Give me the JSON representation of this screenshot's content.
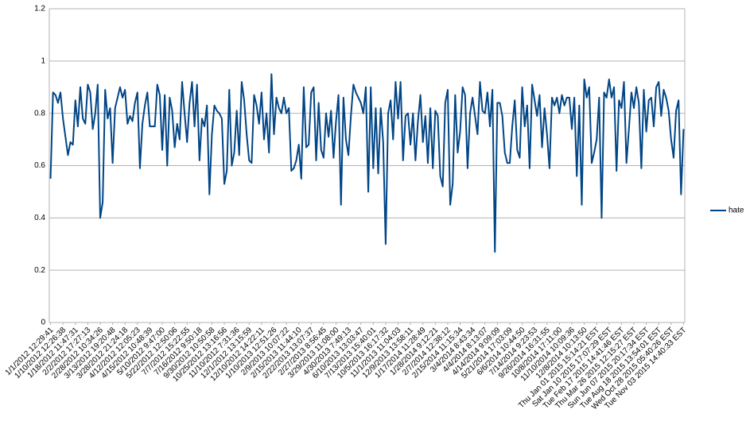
{
  "chart_data": {
    "type": "line",
    "categories": [
      "1/1/2012 12:29:41",
      null,
      null,
      null,
      null,
      "1/10/2012 12:26:38",
      null,
      null,
      null,
      null,
      "1/18/2012 11:47:31",
      null,
      null,
      null,
      null,
      "2/2/2012 17:27:13",
      null,
      null,
      null,
      null,
      "2/28/2012 10:34:26",
      null,
      null,
      null,
      null,
      "3/13/2012 19:20:48",
      null,
      null,
      null,
      null,
      "3/28/2012 21:24:18",
      null,
      null,
      null,
      null,
      "4/12/2012 12:05:23",
      null,
      null,
      null,
      null,
      "4/15/2012 10:48:39",
      null,
      null,
      null,
      null,
      "5/10/2012 9:47:00",
      null,
      null,
      null,
      null,
      "5/22/2012 12:50:06",
      null,
      null,
      null,
      null,
      "7/7/2012 15:22:55",
      null,
      null,
      null,
      null,
      "7/16/2012 9:50:18",
      null,
      null,
      null,
      null,
      "9/30/2012 10:50:58",
      null,
      null,
      null,
      null,
      "10/25/2012 13:16:56",
      null,
      null,
      null,
      null,
      "11/10/2012 7:31:36",
      null,
      null,
      null,
      null,
      "12/1/2012 13:15:59",
      null,
      null,
      null,
      null,
      "12/10/2012 14:22:11",
      null,
      null,
      null,
      null,
      "1/10/2013 12:51:26",
      null,
      null,
      null,
      null,
      "2/9/2013 10:07:22",
      null,
      null,
      null,
      null,
      "2/15/2013 11:44:10",
      null,
      null,
      null,
      null,
      "2/22/2013 13:07:37",
      null,
      null,
      null,
      null,
      "2/27/2013 8:56:45",
      null,
      null,
      null,
      null,
      "3/29/2013 11:08:00",
      null,
      null,
      null,
      null,
      "4/30/2013 7:49:13",
      null,
      null,
      null,
      null,
      "6/10/2013 13:03:47",
      null,
      null,
      null,
      null,
      "7/13/2013 15:40:01",
      null,
      null,
      null,
      null,
      "10/5/2013 16:17:32",
      null,
      null,
      null,
      null,
      "11/1/2013 11:04:03",
      null,
      null,
      null,
      null,
      "12/9/2013 13:58:11",
      null,
      null,
      null,
      null,
      "1/17/2014 11:28:49",
      null,
      null,
      null,
      null,
      "1/28/2014 9:12:21",
      null,
      null,
      null,
      null,
      "2/7/2014 12:38:12",
      null,
      null,
      null,
      null,
      "2/15/2014 11:15:34",
      null,
      null,
      null,
      null,
      "3/4/2014 8:43:34",
      null,
      null,
      null,
      null,
      "4/4/2014 8:13:07",
      null,
      null,
      null,
      null,
      "4/14/2014 9:09:09",
      null,
      null,
      null,
      null,
      "5/21/2014 17:03:09",
      null,
      null,
      null,
      null,
      "6/6/2014 10:44:50",
      null,
      null,
      null,
      null,
      "7/14/2014 9:23:53",
      null,
      null,
      null,
      null,
      "9/26/2014 16:31:55",
      null,
      null,
      null,
      null,
      "10/8/2014 17:11:00",
      null,
      null,
      null,
      null,
      "11/10/2014 10:09:36",
      null,
      null,
      null,
      null,
      "12/8/2014 10:13:50",
      null,
      null,
      null,
      null,
      "Thu Jan 01 2015 15:14:21 EST",
      null,
      null,
      null,
      null,
      "Sat Jan 10 2015 17:07:29 EST",
      null,
      null,
      null,
      null,
      "Tue Feb 17 2015 14:41:46 EST",
      null,
      null,
      null,
      null,
      "Thu Mar 26 2015 12:15:27 EST",
      null,
      null,
      null,
      null,
      "Sun Jun 07 2015 20:17:34 EST",
      null,
      null,
      null,
      null,
      "Tue Aug 18 2015 13:54:01 EST",
      null,
      null,
      null,
      null,
      "Wed Oct 28 2015 05:40:26 EST",
      null,
      null,
      null,
      null,
      "Tue Nov 03 2015 14:40:33 EST"
    ],
    "series": [
      {
        "name": "hate",
        "color": "#004586",
        "values": [
          0.55,
          0.88,
          0.87,
          0.84,
          0.88,
          0.78,
          0.71,
          0.64,
          0.69,
          0.68,
          0.85,
          0.75,
          0.9,
          0.78,
          0.76,
          0.91,
          0.88,
          0.74,
          0.8,
          0.91,
          0.4,
          0.46,
          0.89,
          0.78,
          0.82,
          0.61,
          0.82,
          0.86,
          0.9,
          0.86,
          0.89,
          0.76,
          0.79,
          0.77,
          0.84,
          0.88,
          0.59,
          0.76,
          0.83,
          0.88,
          0.75,
          0.75,
          0.75,
          0.91,
          0.87,
          0.66,
          0.87,
          0.6,
          0.86,
          0.81,
          0.67,
          0.76,
          0.7,
          0.92,
          0.8,
          0.69,
          0.84,
          0.92,
          0.75,
          0.91,
          0.62,
          0.78,
          0.75,
          0.83,
          0.49,
          0.72,
          0.83,
          0.81,
          0.8,
          0.78,
          0.53,
          0.58,
          0.89,
          0.6,
          0.65,
          0.81,
          0.64,
          0.92,
          0.85,
          0.72,
          0.62,
          0.61,
          0.87,
          0.83,
          0.76,
          0.88,
          0.7,
          0.8,
          0.65,
          0.95,
          0.72,
          0.86,
          0.82,
          0.8,
          0.86,
          0.8,
          0.82,
          0.58,
          0.59,
          0.62,
          0.68,
          0.55,
          0.9,
          0.67,
          0.68,
          0.88,
          0.9,
          0.62,
          0.84,
          0.66,
          0.63,
          0.8,
          0.71,
          0.81,
          0.63,
          0.77,
          0.87,
          0.45,
          0.86,
          0.7,
          0.64,
          0.79,
          0.91,
          0.88,
          0.86,
          0.84,
          0.8,
          0.9,
          0.5,
          0.9,
          0.59,
          0.82,
          0.57,
          0.82,
          0.69,
          0.3,
          0.8,
          0.85,
          0.7,
          0.92,
          0.78,
          0.92,
          0.62,
          0.79,
          0.8,
          0.68,
          0.8,
          0.62,
          0.77,
          0.87,
          0.69,
          0.79,
          0.61,
          0.82,
          0.59,
          0.81,
          0.79,
          0.56,
          0.52,
          0.84,
          0.89,
          0.45,
          0.53,
          0.87,
          0.65,
          0.73,
          0.9,
          0.87,
          0.59,
          0.8,
          0.86,
          0.79,
          0.72,
          0.92,
          0.81,
          0.8,
          0.88,
          0.75,
          0.89,
          0.27,
          0.84,
          0.84,
          0.79,
          0.65,
          0.61,
          0.61,
          0.75,
          0.85,
          0.66,
          0.63,
          0.9,
          0.75,
          0.83,
          0.59,
          0.91,
          0.85,
          0.79,
          0.87,
          0.67,
          0.82,
          0.72,
          0.59,
          0.86,
          0.83,
          0.86,
          0.8,
          0.87,
          0.83,
          0.86,
          0.86,
          0.74,
          0.86,
          0.56,
          0.83,
          0.45,
          0.93,
          0.86,
          0.9,
          0.61,
          0.65,
          0.7,
          0.86,
          0.4,
          0.88,
          0.86,
          0.93,
          0.86,
          0.9,
          0.58,
          0.85,
          0.82,
          0.92,
          0.61,
          0.74,
          0.88,
          0.82,
          0.9,
          0.84,
          0.59,
          0.89,
          0.73,
          0.85,
          0.86,
          0.75,
          0.9,
          0.92,
          0.79,
          0.89,
          0.86,
          0.81,
          0.7,
          0.63,
          0.81,
          0.85,
          0.49,
          0.74
        ]
      }
    ],
    "ylim": [
      0,
      1.2
    ],
    "yticks": [
      0,
      0.2,
      0.4,
      0.6,
      0.8,
      1,
      1.2
    ],
    "grid": true,
    "legend": "right"
  }
}
